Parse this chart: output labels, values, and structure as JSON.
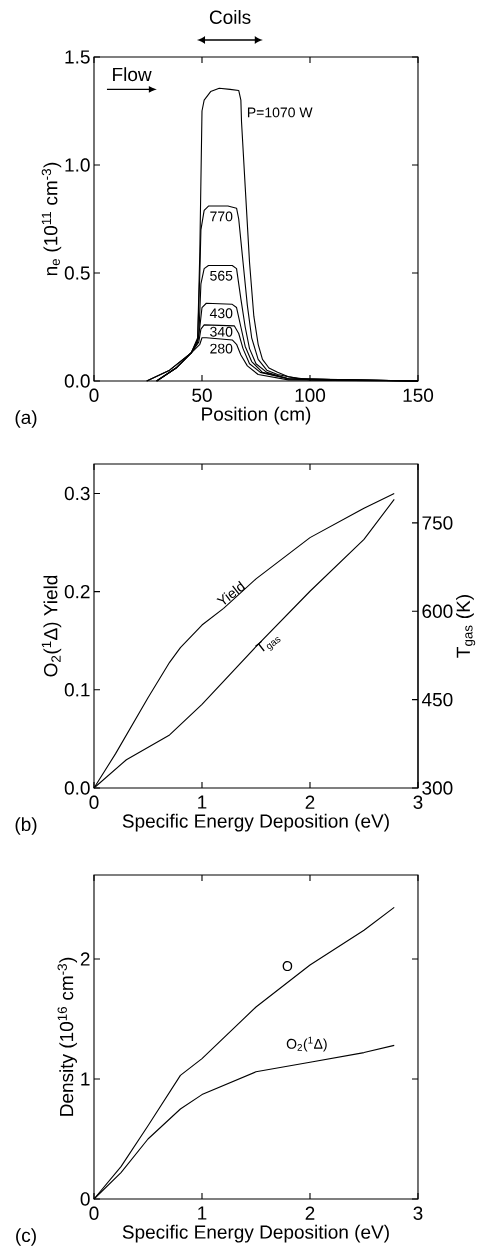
{
  "chart_data": [
    {
      "type": "line",
      "xlabel": "Position (cm)",
      "ylabel": "n$_{e}$ (10$^{11}$ cm$^{-3}$)",
      "xlim": [
        0,
        150
      ],
      "ylim": [
        0,
        1.5
      ],
      "xticks": [
        0,
        50,
        100,
        150
      ],
      "yticks": [
        {
          "value": 0,
          "label": "0.0"
        },
        {
          "value": 0.5,
          "label": "0.5"
        },
        {
          "value": 1.0,
          "label": "1.0"
        },
        {
          "value": 1.5,
          "label": "1.5"
        }
      ],
      "annotations": [
        "(a)",
        "Coils",
        "Flow"
      ],
      "series": [
        {
          "name": "P=1070 W",
          "color": "#000000",
          "x": [
            24.4,
            35,
            45,
            48,
            49,
            50,
            51,
            54,
            58,
            63,
            67,
            68,
            68.3,
            70,
            72,
            74,
            76,
            78,
            81,
            85,
            90,
            100,
            110,
            150
          ],
          "values": [
            0,
            0.05,
            0.13,
            0.2,
            0.6,
            1.25,
            1.3,
            1.34,
            1.355,
            1.35,
            1.345,
            1.3,
            1.2,
            0.9,
            0.55,
            0.3,
            0.17,
            0.1,
            0.06,
            0.04,
            0.02,
            0.005,
            0.002,
            0
          ]
        },
        {
          "name": "770",
          "color": "#000000",
          "x": [
            24.4,
            35,
            45,
            48,
            49,
            49.5,
            51,
            53,
            62,
            66,
            67,
            69,
            71,
            73,
            76,
            80,
            85,
            95,
            150
          ],
          "values": [
            0,
            0.05,
            0.13,
            0.19,
            0.5,
            0.7,
            0.79,
            0.81,
            0.81,
            0.8,
            0.75,
            0.55,
            0.35,
            0.2,
            0.1,
            0.05,
            0.03,
            0.01,
            0
          ]
        },
        {
          "name": "565",
          "color": "#000000",
          "x": [
            29,
            38,
            45,
            48.5,
            49.5,
            51,
            53,
            64,
            66,
            68,
            70,
            72,
            75,
            80,
            90,
            150
          ],
          "values": [
            0,
            0.06,
            0.13,
            0.2,
            0.45,
            0.52,
            0.535,
            0.535,
            0.52,
            0.38,
            0.25,
            0.15,
            0.08,
            0.04,
            0.01,
            0
          ]
        },
        {
          "name": "430",
          "color": "#000000",
          "x": [
            29,
            38,
            45,
            48,
            49,
            50,
            52,
            64,
            66,
            68,
            70,
            73,
            78,
            90,
            150
          ],
          "values": [
            0,
            0.06,
            0.13,
            0.18,
            0.25,
            0.34,
            0.36,
            0.355,
            0.34,
            0.25,
            0.16,
            0.09,
            0.04,
            0.01,
            0
          ]
        },
        {
          "name": "340",
          "color": "#000000",
          "x": [
            29,
            38,
            45,
            48.5,
            49.5,
            51,
            65,
            67,
            69,
            72,
            77,
            90,
            150
          ],
          "values": [
            0,
            0.06,
            0.13,
            0.18,
            0.24,
            0.26,
            0.255,
            0.22,
            0.15,
            0.08,
            0.04,
            0.01,
            0
          ]
        },
        {
          "name": "280",
          "color": "#000000",
          "x": [
            29,
            38,
            45,
            48,
            49,
            50,
            52,
            64,
            66,
            68,
            71,
            76,
            90,
            150
          ],
          "values": [
            0,
            0.06,
            0.13,
            0.16,
            0.17,
            0.2,
            0.2,
            0.19,
            0.17,
            0.12,
            0.07,
            0.03,
            0.005,
            0
          ]
        }
      ]
    },
    {
      "type": "line",
      "xlabel": "Specific Energy Deposition (eV)",
      "ylabel": "O$_{2}$($^{1}$Δ) Yield",
      "y2label": "T$_{gas}$ (K)",
      "xlim": [
        0,
        3
      ],
      "ylim": [
        0,
        0.33
      ],
      "y2lim": [
        300,
        850
      ],
      "xticks": [
        0,
        1,
        2,
        3
      ],
      "yticks": [
        {
          "value": 0,
          "label": "0.0"
        },
        {
          "value": 0.1,
          "label": "0.1"
        },
        {
          "value": 0.2,
          "label": "0.2"
        },
        {
          "value": 0.3,
          "label": "0.3"
        }
      ],
      "y2ticks": [
        300,
        450,
        600,
        750
      ],
      "annotations": [
        "(b)"
      ],
      "series": [
        {
          "name": "Yield",
          "color": "#000000",
          "x": [
            0,
            0.2,
            0.5,
            0.7,
            0.8,
            1.0,
            1.2,
            1.5,
            2.0,
            2.5,
            2.78
          ],
          "values": [
            0,
            0.035,
            0.092,
            0.128,
            0.143,
            0.166,
            0.183,
            0.213,
            0.255,
            0.285,
            0.3
          ]
        },
        {
          "name": "T$_{gas}$",
          "color": "#000000",
          "axis": "y2",
          "x": [
            0,
            0.3,
            0.7,
            1.0,
            1.5,
            2.0,
            2.5,
            2.78
          ],
          "values": [
            300,
            348,
            390,
            442,
            540,
            634,
            722,
            790
          ]
        }
      ]
    },
    {
      "type": "line",
      "xlabel": "Specific Energy Deposition (eV)",
      "ylabel": "Density (10$^{16}$ cm$^{-3}$)",
      "xlim": [
        0,
        3
      ],
      "ylim": [
        0,
        2.7
      ],
      "xticks": [
        0,
        1,
        2,
        3
      ],
      "yticks": [
        0,
        1,
        2
      ],
      "annotations": [
        "(c)"
      ],
      "series": [
        {
          "name": "O",
          "color": "#000000",
          "x": [
            0,
            0.25,
            0.5,
            0.8,
            1.0,
            1.5,
            2.0,
            2.5,
            2.78
          ],
          "values": [
            0,
            0.27,
            0.61,
            1.03,
            1.17,
            1.6,
            1.95,
            2.24,
            2.43
          ]
        },
        {
          "name": "O$_{2}$($^{1}$Δ)",
          "color": "#000000",
          "x": [
            0,
            0.25,
            0.5,
            0.8,
            1.0,
            1.5,
            2.0,
            2.5,
            2.78
          ],
          "values": [
            0,
            0.22,
            0.5,
            0.75,
            0.87,
            1.06,
            1.14,
            1.22,
            1.28
          ]
        }
      ]
    }
  ]
}
